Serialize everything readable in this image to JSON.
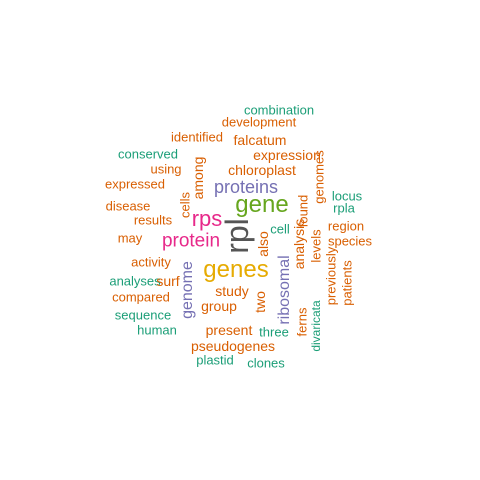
{
  "colors": {
    "green_teal": "#1b9e77",
    "orange": "#d95f02",
    "purple": "#7570b3",
    "magenta": "#e7298a",
    "lime": "#66a61e",
    "gold": "#e6ab02",
    "gray": "#555555"
  },
  "words": [
    {
      "text": "combination",
      "color": "#1b9e77",
      "vertical": false
    },
    {
      "text": "development",
      "color": "#d95f02",
      "vertical": false
    },
    {
      "text": "identified",
      "color": "#d95f02",
      "vertical": false
    },
    {
      "text": "falcatum",
      "color": "#d95f02",
      "vertical": false
    },
    {
      "text": "conserved",
      "color": "#1b9e77",
      "vertical": false
    },
    {
      "text": "expression",
      "color": "#d95f02",
      "vertical": false
    },
    {
      "text": "using",
      "color": "#d95f02",
      "vertical": false
    },
    {
      "text": "chloroplast",
      "color": "#d95f02",
      "vertical": false
    },
    {
      "text": "expressed",
      "color": "#d95f02",
      "vertical": false
    },
    {
      "text": "among",
      "color": "#d95f02",
      "vertical": true
    },
    {
      "text": "proteins",
      "color": "#7570b3",
      "vertical": false
    },
    {
      "text": "genomes",
      "color": "#d95f02",
      "vertical": true
    },
    {
      "text": "locus",
      "color": "#1b9e77",
      "vertical": false
    },
    {
      "text": "disease",
      "color": "#d95f02",
      "vertical": false
    },
    {
      "text": "cells",
      "color": "#d95f02",
      "vertical": true
    },
    {
      "text": "gene",
      "color": "#66a61e",
      "vertical": false
    },
    {
      "text": "rpla",
      "color": "#1b9e77",
      "vertical": false
    },
    {
      "text": "results",
      "color": "#d95f02",
      "vertical": false
    },
    {
      "text": "rps",
      "color": "#e7298a",
      "vertical": false
    },
    {
      "text": "found",
      "color": "#d95f02",
      "vertical": true
    },
    {
      "text": "region",
      "color": "#d95f02",
      "vertical": false
    },
    {
      "text": "cell",
      "color": "#1b9e77",
      "vertical": false
    },
    {
      "text": "may",
      "color": "#d95f02",
      "vertical": false
    },
    {
      "text": "protein",
      "color": "#e7298a",
      "vertical": false
    },
    {
      "text": "rpl",
      "color": "#555555",
      "vertical": true
    },
    {
      "text": "also",
      "color": "#d95f02",
      "vertical": true
    },
    {
      "text": "analysis",
      "color": "#d95f02",
      "vertical": true
    },
    {
      "text": "levels",
      "color": "#d95f02",
      "vertical": true
    },
    {
      "text": "species",
      "color": "#d95f02",
      "vertical": false
    },
    {
      "text": "activity",
      "color": "#d95f02",
      "vertical": false
    },
    {
      "text": "genes",
      "color": "#e6ab02",
      "vertical": false
    },
    {
      "text": "previously",
      "color": "#d95f02",
      "vertical": true
    },
    {
      "text": "patients",
      "color": "#d95f02",
      "vertical": true
    },
    {
      "text": "analyses",
      "color": "#1b9e77",
      "vertical": false
    },
    {
      "text": "surf",
      "color": "#d95f02",
      "vertical": false
    },
    {
      "text": "genome",
      "color": "#7570b3",
      "vertical": true
    },
    {
      "text": "ribosomal",
      "color": "#7570b3",
      "vertical": true
    },
    {
      "text": "study",
      "color": "#d95f02",
      "vertical": false
    },
    {
      "text": "compared",
      "color": "#d95f02",
      "vertical": false
    },
    {
      "text": "two",
      "color": "#d95f02",
      "vertical": true
    },
    {
      "text": "group",
      "color": "#d95f02",
      "vertical": false
    },
    {
      "text": "ferns",
      "color": "#d95f02",
      "vertical": true
    },
    {
      "text": "divaricata",
      "color": "#1b9e77",
      "vertical": true
    },
    {
      "text": "sequence",
      "color": "#1b9e77",
      "vertical": false
    },
    {
      "text": "human",
      "color": "#1b9e77",
      "vertical": false
    },
    {
      "text": "present",
      "color": "#d95f02",
      "vertical": false
    },
    {
      "text": "three",
      "color": "#1b9e77",
      "vertical": false
    },
    {
      "text": "pseudogenes",
      "color": "#d95f02",
      "vertical": false
    },
    {
      "text": "plastid",
      "color": "#1b9e77",
      "vertical": false
    },
    {
      "text": "clones",
      "color": "#1b9e77",
      "vertical": false
    }
  ]
}
